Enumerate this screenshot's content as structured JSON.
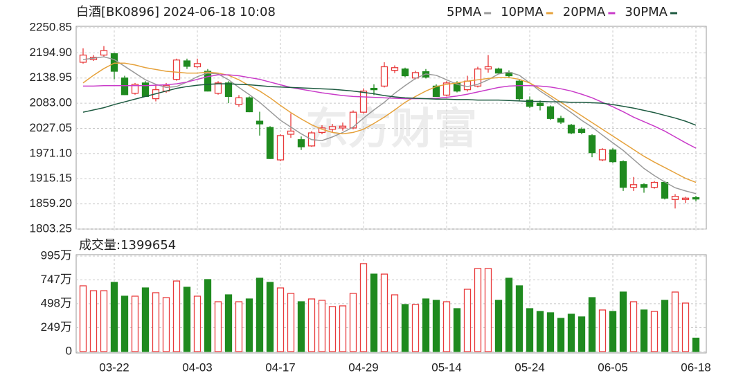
{
  "watermark": "东方财富",
  "chart_data": [
    {
      "type": "candlestick",
      "title": "白酒[BK0896] 2024-06-18 10:08",
      "categories": [
        null,
        null,
        null,
        "03-22",
        null,
        null,
        null,
        null,
        null,
        null,
        null,
        "04-03",
        null,
        null,
        null,
        null,
        null,
        null,
        null,
        "04-17",
        null,
        null,
        null,
        null,
        null,
        null,
        null,
        "04-29",
        null,
        null,
        null,
        null,
        null,
        null,
        null,
        "05-14",
        null,
        null,
        null,
        null,
        null,
        null,
        null,
        "05-24",
        null,
        null,
        null,
        null,
        null,
        null,
        null,
        "06-05",
        null,
        null,
        null,
        null,
        null,
        null,
        null,
        "06-18"
      ],
      "open": [
        2174,
        2180,
        2190,
        2193,
        2139,
        2105,
        2128,
        2093,
        2110,
        2136,
        2177,
        2164,
        2154,
        2105,
        2128,
        2080,
        2095,
        2043,
        2029,
        1957,
        2014,
        2002,
        1988,
        2018,
        2025,
        2028,
        2028,
        2063,
        2116,
        2121,
        2156,
        2159,
        2139,
        2153,
        2121,
        2101,
        2128,
        2113,
        2121,
        2159,
        2159,
        2151,
        2132,
        2090,
        2083,
        2075,
        2049,
        2034,
        2025,
        2011,
        1957,
        1979,
        1953,
        1896,
        1902,
        1896,
        1907,
        1869,
        1869,
        1873
      ],
      "high": [
        2205,
        2190,
        2210,
        2195,
        2144,
        2128,
        2132,
        2125,
        2128,
        2182,
        2182,
        2182,
        2159,
        2132,
        2132,
        2101,
        2098,
        2064,
        2032,
        2014,
        2060,
        2009,
        2021,
        2034,
        2037,
        2040,
        2067,
        2116,
        2125,
        2174,
        2167,
        2162,
        2155,
        2159,
        2125,
        2132,
        2132,
        2144,
        2164,
        2190,
        2162,
        2156,
        2136,
        2098,
        2089,
        2078,
        2055,
        2037,
        2029,
        2014,
        1983,
        1983,
        1956,
        1919,
        1905,
        1910,
        1910,
        1881,
        1875,
        1877
      ],
      "low": [
        2171,
        2177,
        2187,
        2136,
        2101,
        2102,
        2097,
        2087,
        2106,
        2133,
        2159,
        2161,
        2109,
        2102,
        2083,
        2075,
        2063,
        2011,
        1959,
        1954,
        2006,
        1979,
        1986,
        2014,
        2018,
        2022,
        2025,
        2060,
        2101,
        2118,
        2150,
        2141,
        2136,
        2138,
        2097,
        2098,
        2107,
        2109,
        2118,
        2151,
        2147,
        2139,
        2087,
        2072,
        2067,
        2046,
        2037,
        2014,
        2014,
        1963,
        1954,
        1950,
        1888,
        1888,
        1884,
        1893,
        1869,
        1849,
        1861,
        1865
      ],
      "close": [
        2190,
        2185,
        2200,
        2154,
        2102,
        2125,
        2098,
        2113,
        2122,
        2179,
        2165,
        2171,
        2110,
        2128,
        2098,
        2095,
        2064,
        2037,
        1960,
        2011,
        2021,
        1986,
        2017,
        2028,
        2031,
        2032,
        2063,
        2110,
        2113,
        2164,
        2162,
        2144,
        2151,
        2141,
        2098,
        2128,
        2110,
        2132,
        2159,
        2164,
        2150,
        2144,
        2093,
        2076,
        2078,
        2049,
        2041,
        2017,
        2018,
        1973,
        1980,
        1953,
        1896,
        1902,
        1896,
        1907,
        1872,
        1876,
        1872,
        1870
      ],
      "up_color": "#e8393a",
      "down_color": "#1f8a1f",
      "series": [
        {
          "name": "5PMA",
          "color": "#9a9a9a",
          "values": [
            2180,
            2183,
            2186,
            2180,
            2165,
            2150,
            2135,
            2125,
            2118,
            2120,
            2130,
            2142,
            2150,
            2148,
            2135,
            2118,
            2102,
            2085,
            2065,
            2045,
            2030,
            2015,
            2002,
            2000,
            2008,
            2018,
            2030,
            2050,
            2068,
            2085,
            2105,
            2122,
            2138,
            2148,
            2145,
            2135,
            2125,
            2120,
            2125,
            2135,
            2148,
            2152,
            2145,
            2128,
            2110,
            2095,
            2078,
            2062,
            2045,
            2030,
            2012,
            1995,
            1978,
            1958,
            1938,
            1922,
            1908,
            1895,
            1888,
            1882
          ]
        },
        {
          "name": "10PMA",
          "color": "#e6a23c",
          "values": [
            2128,
            2145,
            2160,
            2172,
            2172,
            2168,
            2162,
            2158,
            2154,
            2152,
            2150,
            2150,
            2152,
            2150,
            2145,
            2135,
            2122,
            2110,
            2095,
            2078,
            2062,
            2048,
            2035,
            2025,
            2018,
            2015,
            2018,
            2025,
            2038,
            2052,
            2068,
            2085,
            2098,
            2110,
            2120,
            2125,
            2128,
            2132,
            2135,
            2138,
            2140,
            2140,
            2136,
            2128,
            2115,
            2100,
            2085,
            2070,
            2055,
            2040,
            2025,
            2010,
            1995,
            1980,
            1965,
            1952,
            1940,
            1928,
            1916,
            1907
          ]
        },
        {
          "name": "20PMA",
          "color": "#c93bc9",
          "values": [
            2121,
            2121,
            2122,
            2122,
            2122,
            2122,
            2122,
            2123,
            2124,
            2126,
            2130,
            2136,
            2142,
            2146,
            2146,
            2144,
            2140,
            2136,
            2130,
            2124,
            2118,
            2114,
            2110,
            2106,
            2103,
            2100,
            2098,
            2097,
            2096,
            2095,
            2094,
            2093,
            2093,
            2093,
            2094,
            2096,
            2099,
            2103,
            2108,
            2113,
            2118,
            2121,
            2122,
            2122,
            2121,
            2119,
            2115,
            2110,
            2103,
            2095,
            2085,
            2075,
            2064,
            2052,
            2042,
            2032,
            2021,
            2008,
            1995,
            1983
          ]
        },
        {
          "name": "30PMA",
          "color": "#1d5a40",
          "values": [
            2063,
            2068,
            2073,
            2080,
            2086,
            2092,
            2098,
            2104,
            2110,
            2116,
            2120,
            2123,
            2125,
            2126,
            2126,
            2125,
            2124,
            2122,
            2120,
            2119,
            2118,
            2117,
            2116,
            2115,
            2114,
            2112,
            2110,
            2107,
            2104,
            2100,
            2097,
            2095,
            2094,
            2093,
            2092,
            2092,
            2091,
            2091,
            2090,
            2090,
            2090,
            2089,
            2088,
            2087,
            2087,
            2086,
            2086,
            2085,
            2085,
            2084,
            2083,
            2080,
            2076,
            2072,
            2067,
            2062,
            2056,
            2050,
            2043,
            2034
          ]
        }
      ],
      "ylim": [
        1803.25,
        2250.85
      ],
      "yticks": [
        1803.25,
        {
          "value": 1859.2,
          "label": "1859.20"
        },
        1915.15,
        {
          "value": 1971.1,
          "label": "1971.10"
        },
        2027.05,
        {
          "value": 2083,
          "label": "2083.00"
        },
        2138.95,
        {
          "value": 2194.9,
          "label": "2194.90"
        },
        2250.85
      ],
      "grid": true
    },
    {
      "type": "bar",
      "title": "成交量:1399654",
      "values": [
        685,
        634,
        634,
        721,
        577,
        577,
        663,
        613,
        562,
        735,
        670,
        577,
        750,
        519,
        591,
        519,
        548,
        764,
        721,
        663,
        606,
        519,
        548,
        534,
        469,
        476,
        606,
        916,
        807,
        807,
        591,
        490,
        490,
        548,
        534,
        519,
        447,
        649,
        865,
        865,
        534,
        764,
        685,
        447,
        418,
        404,
        346,
        389,
        361,
        562,
        433,
        418,
        620,
        519,
        433,
        418,
        534,
        620,
        505,
        140
      ],
      "ylim": [
        0,
        995
      ],
      "yticks": [
        0,
        {
          "value": 249,
          "label": "249万"
        },
        {
          "value": 498,
          "label": "498万"
        },
        {
          "value": 747,
          "label": "747万"
        },
        {
          "value": 995,
          "label": "995万"
        }
      ],
      "grid": true
    }
  ]
}
